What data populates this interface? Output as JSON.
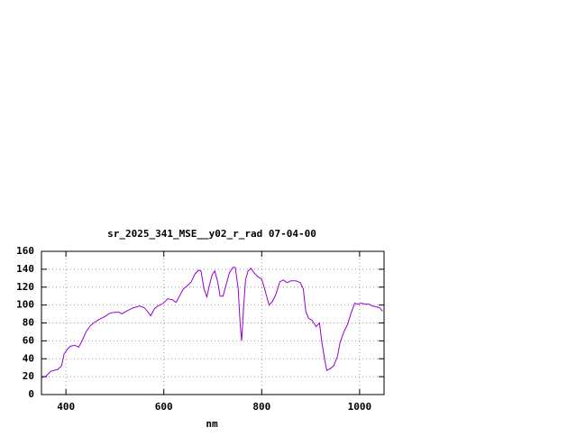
{
  "chart_data": {
    "type": "line",
    "title": "sr_2025_341_MSE__y02_r_rad 07-04-00",
    "x_label": "nm",
    "x": [
      350,
      358,
      369,
      376,
      383,
      391,
      396,
      402,
      409,
      418,
      426,
      433,
      441,
      450,
      459,
      468,
      479,
      490,
      501,
      509,
      514,
      523,
      538,
      551,
      560,
      568,
      573,
      581,
      588,
      599,
      608,
      617,
      625,
      632,
      640,
      649,
      656,
      664,
      671,
      676,
      682,
      688,
      693,
      699,
      704,
      710,
      715,
      721,
      726,
      734,
      741,
      746,
      752,
      756,
      759,
      763,
      767,
      772,
      778,
      783,
      791,
      800,
      807,
      815,
      822,
      829,
      837,
      844,
      852,
      859,
      870,
      879,
      885,
      890,
      896,
      903,
      911,
      918,
      923,
      929,
      933,
      940,
      947,
      955,
      960,
      968,
      975,
      982,
      990,
      997,
      1004,
      1012,
      1019,
      1026,
      1034,
      1041,
      1047
    ],
    "values": [
      19,
      20,
      26,
      27,
      28,
      32,
      45,
      50,
      54,
      55,
      53,
      60,
      70,
      77,
      81,
      84,
      87,
      91,
      92,
      92,
      90,
      93,
      97,
      99,
      97,
      92,
      88,
      96,
      99,
      102,
      107,
      106,
      103,
      110,
      118,
      122,
      126,
      135,
      139,
      138,
      118,
      109,
      122,
      134,
      138,
      126,
      110,
      110,
      120,
      136,
      142,
      142,
      118,
      78,
      60,
      98,
      128,
      138,
      141,
      137,
      132,
      129,
      116,
      100,
      104,
      112,
      126,
      128,
      125,
      127,
      127,
      125,
      118,
      93,
      85,
      83,
      76,
      80,
      58,
      38,
      27,
      29,
      32,
      43,
      58,
      70,
      78,
      90,
      102,
      101,
      102,
      101,
      101,
      99,
      98,
      97,
      93
    ],
    "color": "#9400d3",
    "xlim": [
      350,
      1050
    ],
    "xticks": [
      400,
      600,
      800,
      1000
    ],
    "ylim": [
      0,
      160
    ],
    "yticks": [
      0,
      20,
      40,
      60,
      80,
      100,
      120,
      140,
      160
    ],
    "grid": true
  }
}
